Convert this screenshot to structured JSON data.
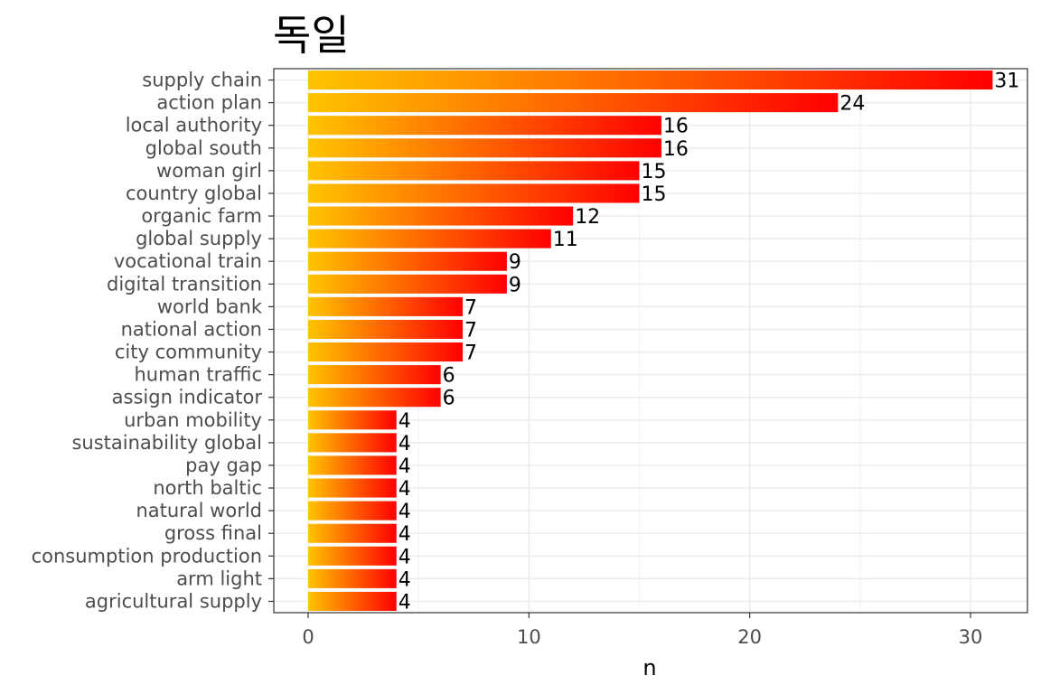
{
  "chart_data": {
    "type": "bar",
    "orientation": "horizontal",
    "title": "독일",
    "xlabel": "n",
    "ylabel": "",
    "xlim": [
      0,
      32
    ],
    "xticks": [
      0,
      10,
      20,
      30
    ],
    "grid": true,
    "bar_gradient": [
      "#ffc400",
      "#ff0000"
    ],
    "categories": [
      "supply chain",
      "action plan",
      "local authority",
      "global south",
      "woman girl",
      "country global",
      "organic farm",
      "global supply",
      "vocational train",
      "digital transition",
      "world bank",
      "national action",
      "city community",
      "human traffic",
      "assign indicator",
      "urban mobility",
      "sustainability global",
      "pay gap",
      "north baltic",
      "natural world",
      "gross final",
      "consumption production",
      "arm light",
      "agricultural supply"
    ],
    "values": [
      31,
      24,
      16,
      16,
      15,
      15,
      12,
      11,
      9,
      9,
      7,
      7,
      7,
      6,
      6,
      4,
      4,
      4,
      4,
      4,
      4,
      4,
      4,
      4
    ]
  }
}
